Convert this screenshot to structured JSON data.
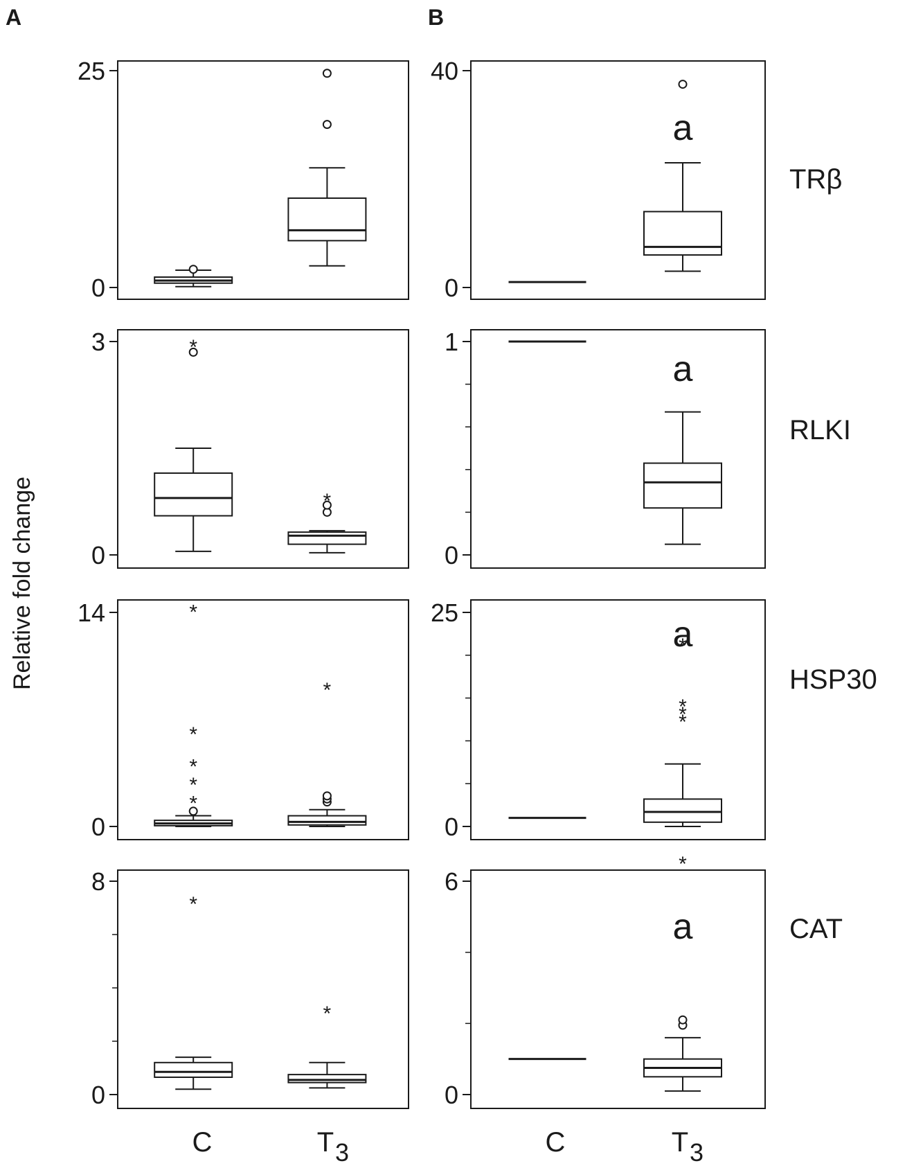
{
  "figure": {
    "panel_letters": [
      "A",
      "B"
    ],
    "ylabel": "Relative fold change",
    "xcats": [
      "C",
      "T"
    ],
    "t_subscript": "3"
  },
  "chart_data": [
    {
      "type": "box",
      "panel": "A",
      "row": "TRβ",
      "gene": "TRβ",
      "ylim": [
        0,
        25
      ],
      "yticks": [
        0,
        25
      ],
      "minor": [],
      "boxes": [
        {
          "category": "C",
          "whisker_low": 0.1,
          "q1": 0.5,
          "median": 0.8,
          "q3": 1.2,
          "whisker_high": 2.0,
          "outliers": [
            {
              "value": 2.1,
              "marker": "o"
            }
          ]
        },
        {
          "category": "T3",
          "whisker_low": 2.5,
          "q1": 5.4,
          "median": 6.6,
          "q3": 10.3,
          "whisker_high": 13.8,
          "outliers": [
            {
              "value": 18.8,
              "marker": "o"
            },
            {
              "value": 24.7,
              "marker": "o"
            }
          ]
        }
      ]
    },
    {
      "type": "box",
      "panel": "B",
      "row": "TRβ",
      "gene": "",
      "ylim": [
        0,
        40
      ],
      "yticks": [
        0,
        40
      ],
      "minor": [],
      "letter": "a",
      "boxes": [
        {
          "category": "C",
          "whisker_low": 1,
          "q1": 1,
          "median": 1,
          "q3": 1,
          "whisker_high": 1,
          "outliers": []
        },
        {
          "category": "T3",
          "whisker_low": 3,
          "q1": 6,
          "median": 7.5,
          "q3": 14,
          "whisker_high": 23,
          "outliers": [
            {
              "value": 37.5,
              "marker": "o"
            }
          ]
        }
      ]
    },
    {
      "type": "box",
      "panel": "A",
      "row": "RLKI",
      "gene": "RLKI",
      "ylim": [
        0,
        3
      ],
      "yticks": [
        0,
        3
      ],
      "minor": [],
      "boxes": [
        {
          "category": "C",
          "whisker_low": 0.05,
          "q1": 0.55,
          "median": 0.8,
          "q3": 1.15,
          "whisker_high": 1.5,
          "outliers": [
            {
              "value": 2.85,
              "marker": "o"
            },
            {
              "value": 2.98,
              "marker": "*"
            }
          ]
        },
        {
          "category": "T3",
          "whisker_low": 0.03,
          "q1": 0.15,
          "median": 0.27,
          "q3": 0.32,
          "whisker_high": 0.34,
          "outliers": [
            {
              "value": 0.6,
              "marker": "o"
            },
            {
              "value": 0.7,
              "marker": "o"
            },
            {
              "value": 0.82,
              "marker": "*"
            }
          ]
        }
      ]
    },
    {
      "type": "box",
      "panel": "B",
      "row": "RLKI",
      "gene": "",
      "ylim": [
        0,
        1
      ],
      "yticks": [
        0,
        1
      ],
      "minor": [
        0.2,
        0.4,
        0.6,
        0.8
      ],
      "letter": "a",
      "boxes": [
        {
          "category": "C",
          "whisker_low": 1,
          "q1": 1,
          "median": 1,
          "q3": 1,
          "whisker_high": 1,
          "outliers": []
        },
        {
          "category": "T3",
          "whisker_low": 0.05,
          "q1": 0.22,
          "median": 0.34,
          "q3": 0.43,
          "whisker_high": 0.67,
          "outliers": []
        }
      ]
    },
    {
      "type": "box",
      "panel": "A",
      "row": "HSP30",
      "gene": "HSP30",
      "ylim": [
        0,
        14
      ],
      "yticks": [
        0,
        14
      ],
      "minor": [],
      "boxes": [
        {
          "category": "C",
          "whisker_low": 0,
          "q1": 0.05,
          "median": 0.2,
          "q3": 0.4,
          "whisker_high": 0.7,
          "outliers": [
            {
              "value": 1.0,
              "marker": "o"
            },
            {
              "value": 1.8,
              "marker": "*"
            },
            {
              "value": 3.0,
              "marker": "*"
            },
            {
              "value": 4.2,
              "marker": "*"
            },
            {
              "value": 6.3,
              "marker": "*"
            },
            {
              "value": 14.3,
              "marker": "*"
            }
          ]
        },
        {
          "category": "T3",
          "whisker_low": 0,
          "q1": 0.1,
          "median": 0.3,
          "q3": 0.7,
          "whisker_high": 1.1,
          "outliers": [
            {
              "value": 1.6,
              "marker": "o"
            },
            {
              "value": 1.8,
              "marker": "o"
            },
            {
              "value": 2.0,
              "marker": "o"
            },
            {
              "value": 9.2,
              "marker": "*"
            }
          ]
        }
      ]
    },
    {
      "type": "box",
      "panel": "B",
      "row": "HSP30",
      "gene": "",
      "ylim": [
        0,
        25
      ],
      "yticks": [
        0,
        25
      ],
      "minor": [
        5,
        10,
        15,
        20
      ],
      "letter": "a",
      "boxes": [
        {
          "category": "C",
          "whisker_low": 1,
          "q1": 1,
          "median": 1,
          "q3": 1,
          "whisker_high": 1,
          "outliers": []
        },
        {
          "category": "T3",
          "whisker_low": 0,
          "q1": 0.5,
          "median": 1.7,
          "q3": 3.2,
          "whisker_high": 7.3,
          "outliers": [
            {
              "value": 12.7,
              "marker": "*"
            },
            {
              "value": 13.6,
              "marker": "*"
            },
            {
              "value": 14.5,
              "marker": "*"
            },
            {
              "value": 21.6,
              "marker": "*"
            }
          ]
        }
      ]
    },
    {
      "type": "box",
      "panel": "A",
      "row": "CAT",
      "gene": "CAT",
      "ylim": [
        0,
        8
      ],
      "yticks": [
        0,
        8
      ],
      "minor": [
        2,
        4,
        6
      ],
      "boxes": [
        {
          "category": "C",
          "whisker_low": 0.2,
          "q1": 0.65,
          "median": 0.85,
          "q3": 1.2,
          "whisker_high": 1.4,
          "outliers": [
            {
              "value": 7.3,
              "marker": "*"
            }
          ]
        },
        {
          "category": "T3",
          "whisker_low": 0.25,
          "q1": 0.45,
          "median": 0.55,
          "q3": 0.75,
          "whisker_high": 1.2,
          "outliers": [
            {
              "value": 3.2,
              "marker": "*"
            }
          ]
        }
      ]
    },
    {
      "type": "box",
      "panel": "B",
      "row": "CAT",
      "gene": "",
      "ylim": [
        0,
        6
      ],
      "yticks": [
        0,
        6
      ],
      "minor": [
        2,
        4
      ],
      "letter": "a",
      "boxes": [
        {
          "category": "C",
          "whisker_low": 1,
          "q1": 1,
          "median": 1,
          "q3": 1,
          "whisker_high": 1,
          "outliers": []
        },
        {
          "category": "T3",
          "whisker_low": 0.1,
          "q1": 0.5,
          "median": 0.75,
          "q3": 1.0,
          "whisker_high": 1.6,
          "outliers": [
            {
              "value": 1.95,
              "marker": "o"
            },
            {
              "value": 2.1,
              "marker": "o"
            },
            {
              "value": 6.6,
              "marker": "*"
            }
          ]
        }
      ]
    }
  ]
}
